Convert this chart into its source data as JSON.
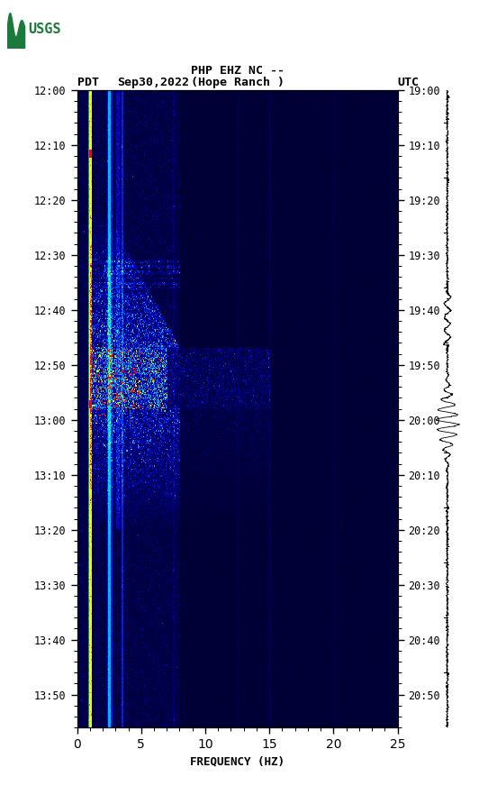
{
  "title_line1": "PHP EHZ NC --",
  "title_line2": "(Hope Ranch )",
  "left_label": "PDT",
  "date_label": "Sep30,2022",
  "right_label": "UTC",
  "freq_min": 0,
  "freq_max": 25,
  "xlabel": "FREQUENCY (HZ)",
  "fig_width": 5.52,
  "fig_height": 8.92,
  "usgs_green": "#1a7a3c",
  "pdt_ticks": [
    0,
    10,
    20,
    30,
    40,
    50,
    60,
    70,
    80,
    90,
    100,
    110
  ],
  "pdt_labels": [
    "12:00",
    "12:10",
    "12:20",
    "12:30",
    "12:40",
    "12:50",
    "13:00",
    "13:10",
    "13:20",
    "13:30",
    "13:40",
    "13:50"
  ],
  "utc_labels": [
    "19:00",
    "19:10",
    "19:20",
    "19:30",
    "19:40",
    "19:50",
    "20:00",
    "20:10",
    "20:20",
    "20:30",
    "20:40",
    "20:50"
  ],
  "total_minutes": 116
}
